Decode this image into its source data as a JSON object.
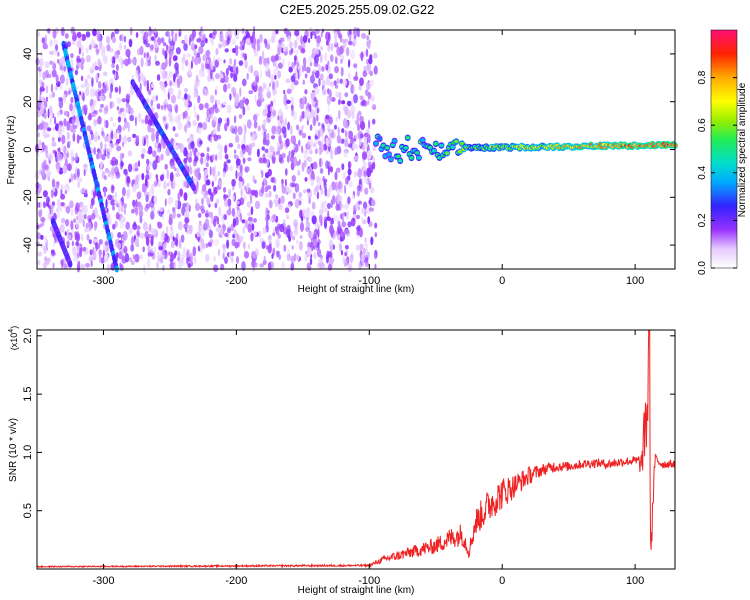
{
  "title": "C2E5.2025.255.09.02.G22",
  "colors": {
    "axis": "#000000",
    "snr_line": "#ee2222",
    "spectro_low": "#ffffff",
    "spectro_mid": "#8a2be2"
  },
  "chart_data": [
    {
      "type": "heatmap",
      "name": "spectrogram",
      "xlabel": "Height of straight line (km)",
      "ylabel": "Frequency (Hz)",
      "xlim": [
        -350,
        130
      ],
      "ylim": [
        -50,
        50
      ],
      "xticks": [
        -300,
        -200,
        -100,
        0,
        100
      ],
      "yticks": [
        -40,
        -20,
        0,
        20,
        40
      ],
      "colorbar": {
        "label": "Normalized spectral amplitude",
        "range": [
          0,
          1
        ],
        "ticks": [
          0.0,
          0.2,
          0.4,
          0.6,
          0.8
        ],
        "tick_labels": [
          "0.0",
          "0.2",
          "0.4",
          "0.6",
          "0.8"
        ],
        "colormap": "rainbow"
      },
      "noise_region_x": [
        -350,
        -95
      ],
      "tones": [
        {
          "name": "tone-1",
          "x": [
            -330,
            -290
          ],
          "y": [
            44,
            -50
          ],
          "amplitude": 0.3
        },
        {
          "name": "tone-2",
          "x": [
            -278,
            -232
          ],
          "y": [
            28,
            -16
          ],
          "amplitude": 0.25
        },
        {
          "name": "tone-3",
          "x": [
            -338,
            -325
          ],
          "y": [
            -30,
            -48
          ],
          "amplitude": 0.22
        }
      ],
      "carrier": {
        "x": [
          -95,
          130
        ],
        "y": [
          0,
          2
        ],
        "amplitude_start": 0.4,
        "amplitude_end": 0.9
      }
    },
    {
      "type": "line",
      "name": "snr",
      "xlabel": "Height of straight line (km)",
      "ylabel": "SNR (10 * v/v)",
      "scale_label": "(x10",
      "scale_exponent": "4",
      "scale_suffix": ")",
      "xlim": [
        -350,
        130
      ],
      "ylim": [
        0,
        2.05
      ],
      "xticks": [
        -300,
        -200,
        -100,
        0,
        100
      ],
      "yticks": [
        0.5,
        1.0,
        1.5,
        2.0
      ],
      "ytick_labels": [
        "0.5",
        "1.0",
        "1.5",
        "2.0"
      ],
      "series": [
        {
          "name": "SNR",
          "x": [
            -350,
            -100,
            -90,
            -70,
            -50,
            -40,
            -30,
            -25,
            -20,
            -10,
            0,
            10,
            20,
            30,
            40,
            50,
            60,
            70,
            80,
            90,
            100,
            105,
            110,
            112,
            115,
            120,
            130
          ],
          "values": [
            0.02,
            0.03,
            0.08,
            0.14,
            0.2,
            0.26,
            0.3,
            0.15,
            0.4,
            0.55,
            0.65,
            0.72,
            0.8,
            0.85,
            0.88,
            0.88,
            0.9,
            0.91,
            0.9,
            0.92,
            0.93,
            0.9,
            1.5,
            0.2,
            0.95,
            0.9,
            0.9
          ],
          "noise": [
            0.005,
            0.008,
            0.03,
            0.05,
            0.07,
            0.09,
            0.1,
            0.06,
            0.12,
            0.15,
            0.14,
            0.1,
            0.08,
            0.05,
            0.05,
            0.04,
            0.04,
            0.04,
            0.04,
            0.04,
            0.04,
            0.1,
            0.5,
            0.2,
            0.05,
            0.04,
            0.03
          ]
        }
      ]
    }
  ]
}
